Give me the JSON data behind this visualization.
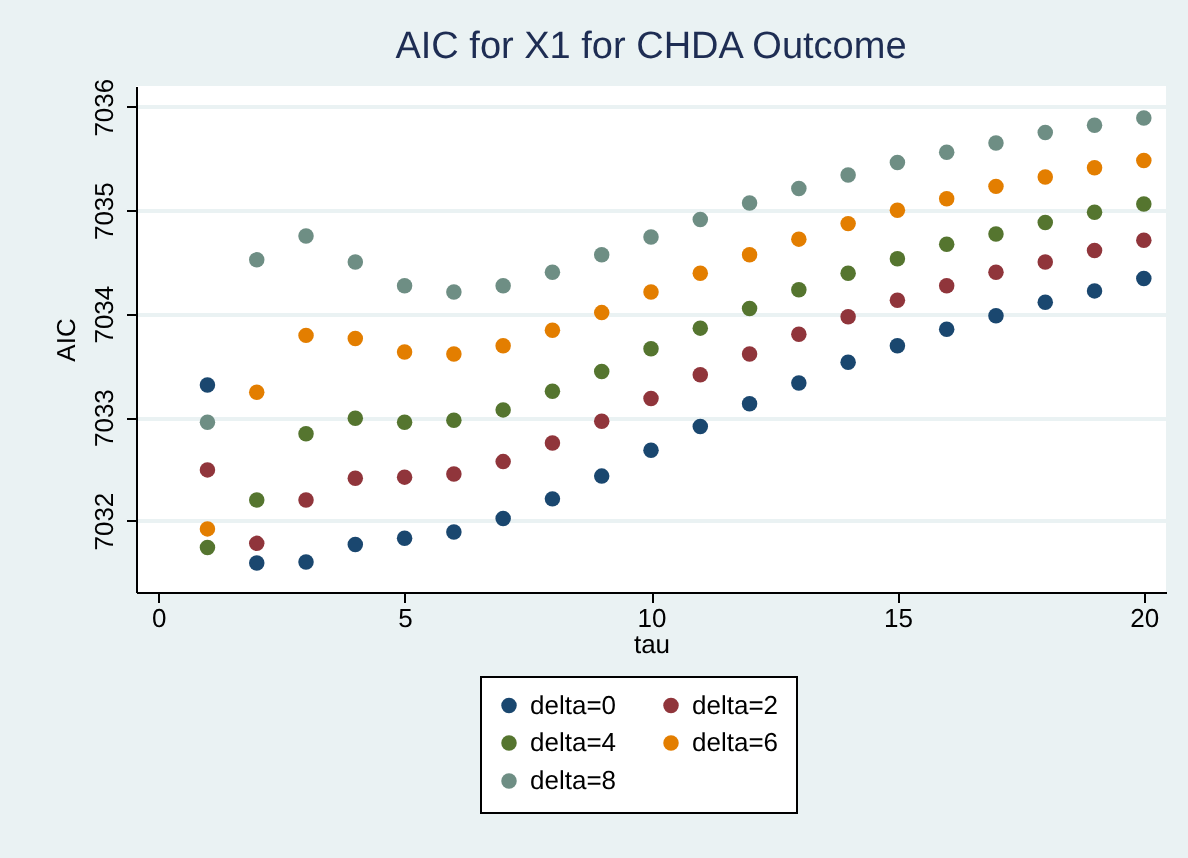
{
  "chart_data": {
    "type": "scatter",
    "title": "AIC for X1 for CHDA Outcome",
    "xlabel": "tau",
    "ylabel": "AIC",
    "x": [
      1,
      2,
      3,
      4,
      5,
      6,
      7,
      8,
      9,
      10,
      11,
      12,
      13,
      14,
      15,
      16,
      17,
      18,
      19,
      20
    ],
    "series": [
      {
        "name": "delta=0",
        "color": "#1a476f",
        "values": [
          7033.31,
          7031.59,
          7031.6,
          7031.77,
          7031.83,
          7031.89,
          7032.02,
          7032.21,
          7032.43,
          7032.68,
          7032.91,
          7033.13,
          7033.33,
          7033.53,
          7033.69,
          7033.85,
          7033.98,
          7034.11,
          7034.22,
          7034.34
        ]
      },
      {
        "name": "delta=2",
        "color": "#90353b",
        "values": [
          7032.49,
          7031.78,
          7032.2,
          7032.41,
          7032.42,
          7032.45,
          7032.57,
          7032.75,
          7032.96,
          7033.18,
          7033.41,
          7033.61,
          7033.8,
          7033.97,
          7034.13,
          7034.27,
          7034.4,
          7034.5,
          7034.61,
          7034.71
        ]
      },
      {
        "name": "delta=4",
        "color": "#55752f",
        "values": [
          7031.74,
          7032.2,
          7032.84,
          7032.99,
          7032.95,
          7032.97,
          7033.07,
          7033.25,
          7033.44,
          7033.66,
          7033.86,
          7034.05,
          7034.23,
          7034.39,
          7034.53,
          7034.67,
          7034.77,
          7034.88,
          7034.98,
          7035.06
        ]
      },
      {
        "name": "delta=6",
        "color": "#e37e00",
        "values": [
          7031.92,
          7033.24,
          7033.79,
          7033.76,
          7033.63,
          7033.61,
          7033.69,
          7033.84,
          7034.01,
          7034.21,
          7034.39,
          7034.57,
          7034.72,
          7034.87,
          7035.0,
          7035.11,
          7035.23,
          7035.32,
          7035.41,
          7035.48
        ]
      },
      {
        "name": "delta=8",
        "color": "#6e8e84",
        "values": [
          7032.95,
          7034.52,
          7034.75,
          7034.5,
          7034.27,
          7034.21,
          7034.27,
          7034.4,
          7034.57,
          7034.74,
          7034.91,
          7035.07,
          7035.21,
          7035.34,
          7035.46,
          7035.56,
          7035.65,
          7035.75,
          7035.82,
          7035.89
        ]
      }
    ],
    "xlim": [
      -0.45,
      20.45
    ],
    "xticks": [
      0,
      5,
      10,
      15,
      20
    ],
    "ylim": [
      7031.31,
      7036.2
    ],
    "yticks": [
      7032,
      7033,
      7034,
      7035,
      7036
    ],
    "grid": "y",
    "legend": "bottom",
    "marker": "circle"
  }
}
